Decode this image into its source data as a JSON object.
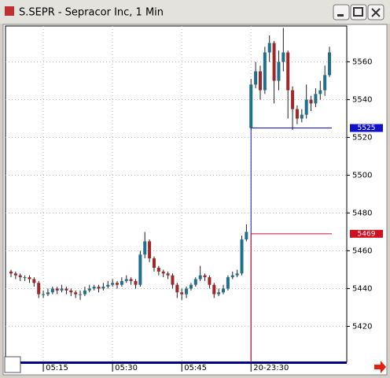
{
  "window": {
    "title": "S.SEPR - Sepracor Inc, 1 Min"
  },
  "chart_data": {
    "type": "candlestick",
    "categories": [
      null,
      null,
      null,
      null,
      null,
      null,
      null,
      "05:15",
      null,
      null,
      null,
      null,
      null,
      null,
      null,
      null,
      null,
      null,
      null,
      null,
      null,
      null,
      "05:30",
      null,
      null,
      null,
      null,
      null,
      null,
      null,
      null,
      null,
      null,
      null,
      null,
      null,
      null,
      "05:45",
      null,
      null,
      null,
      null,
      null,
      null,
      null,
      null,
      null,
      null,
      null,
      null,
      null,
      null,
      "20-23:30",
      null,
      null,
      null,
      null,
      null,
      null,
      null,
      null,
      null,
      null,
      null,
      null,
      null,
      null,
      null,
      null,
      null
    ],
    "open": [
      5449,
      5448,
      5447,
      5446,
      5446,
      5445,
      5443,
      5437,
      5437,
      5438,
      5440,
      5439,
      5440,
      5439,
      5438,
      5437,
      5437,
      5439,
      5440,
      5441,
      5440,
      5441,
      5442,
      5443,
      5442,
      5444,
      5445,
      5444,
      5442,
      5458,
      5465,
      5456,
      5451,
      5449,
      5448,
      5447,
      5442,
      5438,
      5437,
      5440,
      5442,
      5445,
      5447,
      5446,
      5442,
      5437,
      5438,
      5440,
      5446,
      5447,
      5448,
      5466,
      5525,
      5548,
      5555,
      5545,
      5565,
      5570,
      5550,
      5560,
      5565,
      5545,
      5535,
      5530,
      5532,
      5540,
      5538,
      5543,
      5545,
      5553
    ],
    "high": [
      5450,
      5449,
      5448,
      5447,
      5447,
      5446,
      5444,
      5439,
      5440,
      5441,
      5441,
      5442,
      5441,
      5440,
      5439,
      5439,
      5441,
      5442,
      5442,
      5442,
      5443,
      5444,
      5445,
      5444,
      5446,
      5447,
      5446,
      5445,
      5460,
      5470,
      5466,
      5457,
      5452,
      5450,
      5449,
      5448,
      5443,
      5440,
      5441,
      5443,
      5446,
      5452,
      5448,
      5447,
      5443,
      5440,
      5442,
      5447,
      5449,
      5450,
      5468,
      5474,
      5551,
      5560,
      5558,
      5568,
      5574,
      5571,
      5566,
      5578,
      5566,
      5547,
      5537,
      5535,
      5548,
      5542,
      5546,
      5550,
      5558,
      5568
    ],
    "low": [
      5446,
      5445,
      5444,
      5444,
      5443,
      5441,
      5435,
      5435,
      5436,
      5437,
      5437,
      5438,
      5437,
      5436,
      5435,
      5434,
      5436,
      5438,
      5439,
      5438,
      5439,
      5440,
      5441,
      5440,
      5441,
      5443,
      5442,
      5440,
      5441,
      5456,
      5454,
      5449,
      5447,
      5446,
      5445,
      5440,
      5435,
      5434,
      5435,
      5439,
      5441,
      5444,
      5444,
      5440,
      5435,
      5436,
      5437,
      5439,
      5445,
      5446,
      5447,
      5465,
      5524,
      5546,
      5540,
      5543,
      5560,
      5538,
      5545,
      5555,
      5530,
      5524,
      5527,
      5528,
      5530,
      5534,
      5536,
      5540,
      5542,
      5552
    ],
    "close": [
      5448,
      5447,
      5446,
      5446,
      5445,
      5443,
      5437,
      5437,
      5438,
      5440,
      5439,
      5440,
      5439,
      5438,
      5437,
      5437,
      5439,
      5440,
      5441,
      5440,
      5441,
      5442,
      5443,
      5442,
      5444,
      5445,
      5444,
      5442,
      5458,
      5465,
      5456,
      5451,
      5449,
      5448,
      5447,
      5442,
      5438,
      5437,
      5440,
      5442,
      5445,
      5447,
      5446,
      5442,
      5437,
      5438,
      5440,
      5446,
      5447,
      5448,
      5466,
      5470,
      5548,
      5555,
      5545,
      5565,
      5570,
      5550,
      5560,
      5565,
      5545,
      5535,
      5530,
      5532,
      5540,
      5538,
      5543,
      5545,
      5553,
      5565
    ],
    "up_color": "#1f6f8f",
    "down_color": "#a02828",
    "ylim": [
      5401,
      5579
    ],
    "yticks": [
      5420,
      5440,
      5460,
      5480,
      5500,
      5520,
      5540,
      5560
    ],
    "grid": true,
    "levels": [
      {
        "value": 5525,
        "color": "#1010c8"
      },
      {
        "value": 5469,
        "color": "#d01020"
      }
    ]
  }
}
